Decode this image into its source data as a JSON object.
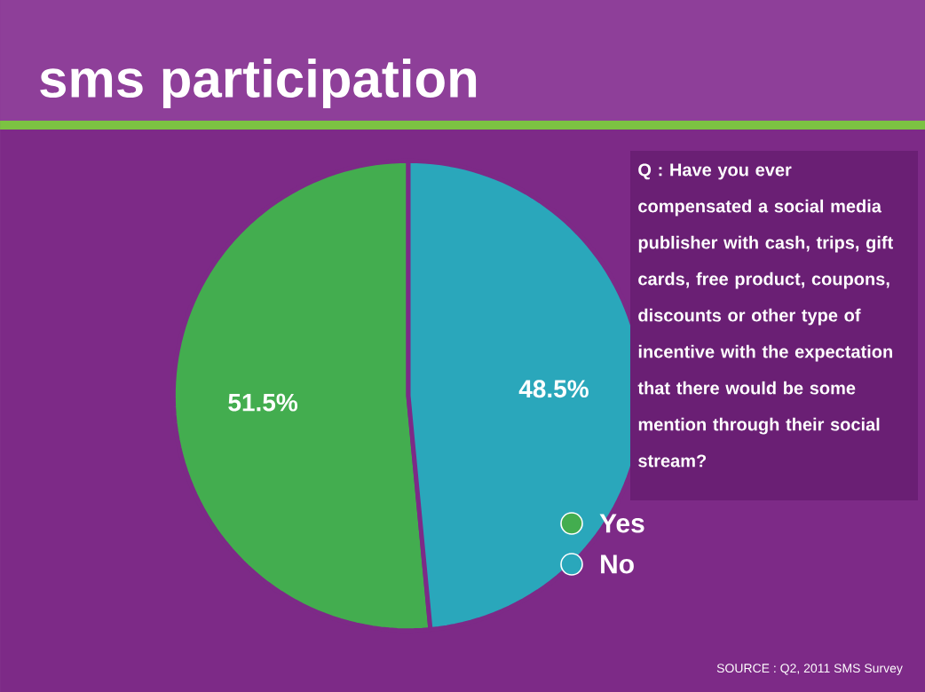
{
  "chart_data": {
    "type": "pie",
    "title": "sms participation",
    "categories": [
      "Yes",
      "No"
    ],
    "values": [
      51.5,
      48.5
    ],
    "value_labels": [
      "51.5%",
      "48.5%"
    ],
    "colors": [
      "#43ad4f",
      "#2aa7bb"
    ],
    "legend": "right",
    "annotations": [
      "Q : Have you ever compensated a social media publisher with cash, trips, gift cards, free product, coupons, discounts or other type of incentive with the expectation that there would be some mention through their social stream?",
      "SOURCE : Q2, 2011 SMS Survey"
    ]
  }
}
